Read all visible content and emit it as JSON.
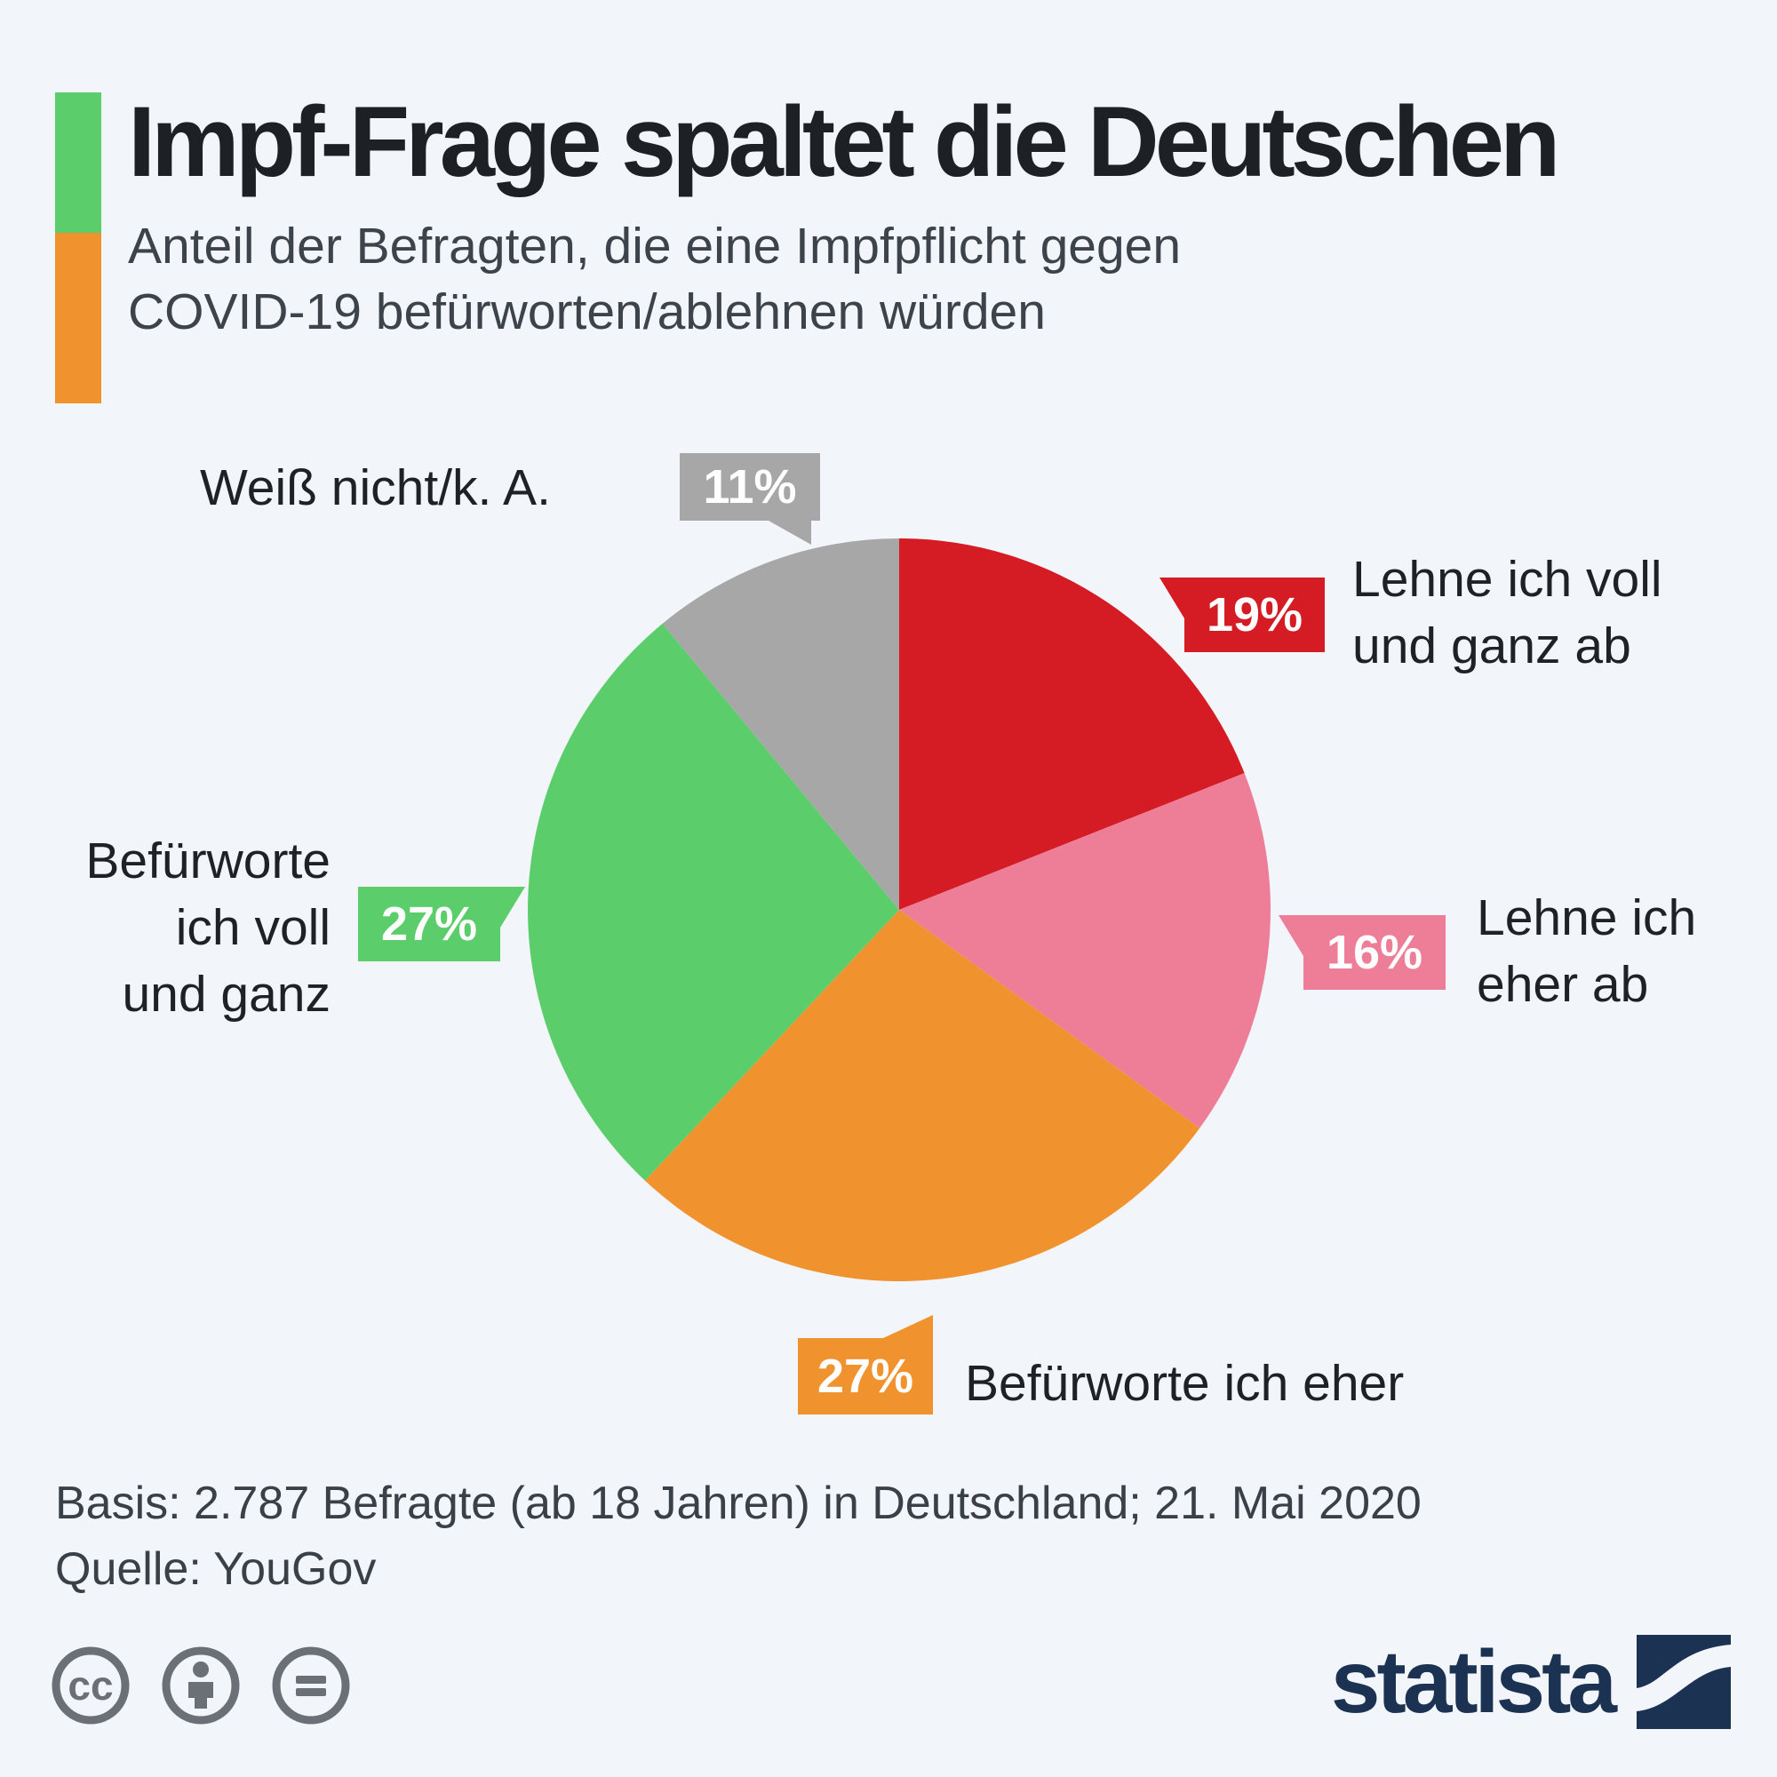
{
  "header": {
    "title": "Impf-Frage spaltet die Deutschen",
    "subtitle": "Anteil der Befragten, die eine Impfpflicht gegen\nCOVID-19 befürworten/ablehnen würden",
    "accent_green": "#5bce6b",
    "accent_orange": "#f0932f"
  },
  "chart_data": {
    "type": "pie",
    "title": "Impf-Frage spaltet die Deutschen",
    "unit": "%",
    "start_at": "12 o'clock, clockwise",
    "slices": [
      {
        "label": "Lehne ich voll und ganz ab",
        "value": 19,
        "color": "#d51b24"
      },
      {
        "label": "Lehne ich eher ab",
        "value": 16,
        "color": "#ee7e97"
      },
      {
        "label": "Befürworte ich eher",
        "value": 27,
        "color": "#f0932f"
      },
      {
        "label": "Befürworte ich voll und ganz",
        "value": 27,
        "color": "#5bce6b"
      },
      {
        "label": "Weiß nicht/k. A.",
        "value": 11,
        "color": "#a8a7a7"
      }
    ]
  },
  "callouts": {
    "dontknow": {
      "label": "Weiß nicht/k. A.",
      "pct": "11%"
    },
    "reject_full": {
      "label": "Lehne ich voll\nund ganz ab",
      "pct": "19%"
    },
    "reject_somewhat": {
      "label": "Lehne ich\neher ab",
      "pct": "16%"
    },
    "support_full": {
      "label": "Befürworte\nich voll\nund ganz",
      "pct": "27%"
    },
    "support_somewhat": {
      "label": "Befürworte ich eher",
      "pct": "27%"
    }
  },
  "footer": {
    "basis": "Basis: 2.787 Befragte (ab 18 Jahren) in Deutschland; 21. Mai 2020",
    "source": "Quelle: YouGov"
  },
  "branding": {
    "logo_text": "statista",
    "logo_color": "#1b3252",
    "license_icons": [
      "cc-icon",
      "attribution-person-icon",
      "no-derivatives-equals-icon"
    ]
  }
}
